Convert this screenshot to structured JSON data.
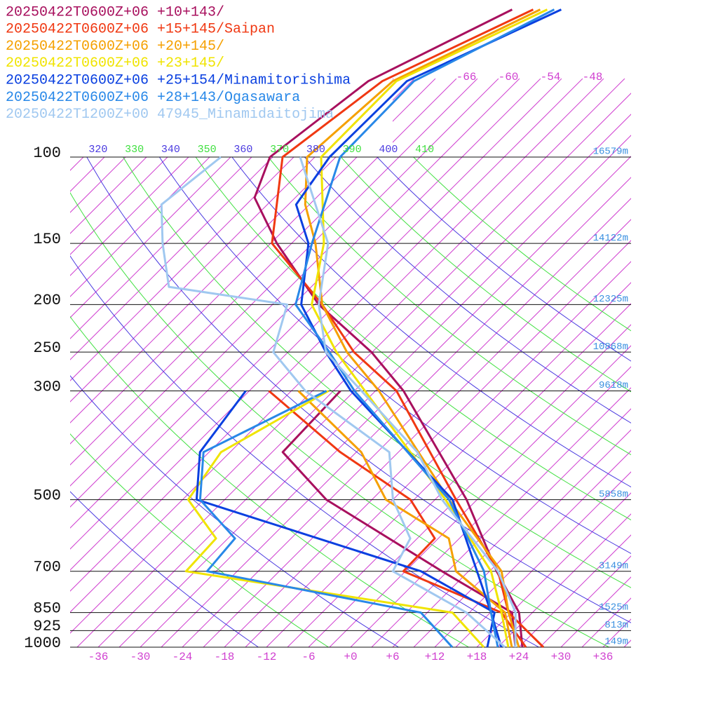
{
  "chart_data": {
    "type": "skewt",
    "xlim": [
      -40,
      40
    ],
    "ylim": [
      1000,
      100
    ],
    "xticks": [
      {
        "value": -36,
        "label": "-36"
      },
      {
        "value": -30,
        "label": "-30"
      },
      {
        "value": -24,
        "label": "-24"
      },
      {
        "value": -18,
        "label": "-18"
      },
      {
        "value": -12,
        "label": "-12"
      },
      {
        "value": -6,
        "label": "-6"
      },
      {
        "value": 0,
        "label": "+0"
      },
      {
        "value": 6,
        "label": "+6"
      },
      {
        "value": 12,
        "label": "+12"
      },
      {
        "value": 18,
        "label": "+18"
      },
      {
        "value": 24,
        "label": "+24"
      },
      {
        "value": 30,
        "label": "+30"
      },
      {
        "value": 36,
        "label": "+36"
      }
    ],
    "yticks": [
      100,
      150,
      200,
      250,
      300,
      500,
      700,
      850,
      925,
      1000
    ],
    "height_labels": [
      "16579m",
      "14122m",
      "12325m",
      "10868m",
      "9618m",
      "5858m",
      "3149m",
      "1525m",
      "813m",
      "149m"
    ],
    "isotherms": [
      -108,
      -105,
      -102,
      -99,
      -96,
      -93,
      -90,
      -87,
      -84,
      -81,
      -78,
      -75,
      -72,
      -69,
      -66,
      -63,
      -60,
      -57,
      -54,
      -51,
      -48,
      -45,
      -42,
      -39,
      -36,
      -33,
      -30,
      -27,
      -24,
      -21,
      -18,
      -15,
      -12,
      -9,
      -6,
      -3,
      0,
      3,
      6,
      9,
      12,
      15,
      18,
      21,
      24,
      27,
      30,
      33,
      36,
      39
    ],
    "isotherm_color": "#d040d0",
    "isotherm_labels": [
      -66,
      -60,
      -54,
      -48
    ],
    "dry_adiabats": [
      260,
      270,
      280,
      290,
      300,
      310,
      320,
      330,
      340,
      350,
      360,
      370,
      380,
      390,
      400,
      410
    ],
    "adiabat_colors": [
      "#4a3ae0",
      "#40e040"
    ],
    "dry_adiabat_labels": [
      320,
      330,
      340,
      350,
      360,
      370,
      380,
      390,
      400,
      410
    ],
    "series": [
      {
        "name": "20250422T0600Z+06 +10+143/",
        "color": "#a8105e",
        "pressure": [
          1000,
          850,
          700,
          500,
          300,
          250,
          200,
          150,
          121,
          100,
          70,
          50
        ],
        "temperature": [
          24.5,
          19.1,
          10,
          -4.5,
          -29,
          -39.1,
          -53.4,
          -68.1,
          -77.8,
          -81.4,
          -78.2,
          -67.9
        ],
        "dewpoint_pressure": [
          1000,
          850,
          700,
          500,
          400,
          300
        ],
        "dewpoint": [
          23.5,
          18.1,
          2.2,
          -24.5,
          -37.5,
          -38
        ]
      },
      {
        "name": "20250422T0600Z+06 +15+145/Saipan",
        "color": "#f03812",
        "pressure": [
          1000,
          850,
          700,
          500,
          300,
          250,
          200,
          150,
          100,
          70,
          50
        ],
        "temperature": [
          27.5,
          17.6,
          10.2,
          -6,
          -30,
          -41.6,
          -52.9,
          -68.8,
          -79.6,
          -76.2,
          -64.9
        ],
        "dewpoint_pressure": [
          1000,
          850,
          700,
          600,
          500,
          400,
          300
        ],
        "dewpoint": [
          25,
          16.6,
          -3.3,
          -3.5,
          -12.5,
          -29.3,
          -48.2
        ]
      },
      {
        "name": "20250422T0600Z+06 +20+145/",
        "color": "#f5a000",
        "pressure": [
          1000,
          850,
          700,
          500,
          300,
          250,
          200,
          150,
          125,
          100,
          70,
          50
        ],
        "temperature": [
          24,
          17.6,
          10.7,
          -7,
          -32.5,
          -42.6,
          -52.9,
          -62.6,
          -69.6,
          -76.1,
          -74.7,
          -63.9
        ],
        "dewpoint_pressure": [
          1000,
          850,
          700,
          600,
          500,
          400,
          300
        ],
        "dewpoint": [
          23,
          17.1,
          4.2,
          -1.5,
          -16,
          -26.3,
          -44
        ]
      },
      {
        "name": "20250422T0600Z+06 +23+145/",
        "color": "#f0e400",
        "pressure": [
          1000,
          850,
          700,
          500,
          300,
          250,
          200,
          150,
          100,
          70,
          50
        ],
        "temperature": [
          22.5,
          16.6,
          9.2,
          -7.5,
          -34.5,
          -44.1,
          -54.4,
          -61.4,
          -74.1,
          -74.2,
          -62.9
        ],
        "dewpoint_pressure": [
          1000,
          850,
          700,
          600,
          500,
          400,
          300
        ],
        "dewpoint": [
          19,
          9.6,
          -34.3,
          -34.7,
          -44.2,
          -46.3,
          -39.7
        ]
      },
      {
        "name": "20250422T0600Z+06 +25+154/Minamitorishima",
        "color": "#0a40e0",
        "pressure": [
          1000,
          850,
          700,
          500,
          300,
          250,
          200,
          150,
          125,
          100,
          70,
          50
        ],
        "temperature": [
          21.5,
          15.1,
          7.2,
          -6.5,
          -36.5,
          -45.6,
          -55.9,
          -63.6,
          -70.9,
          -72.9,
          -72.7,
          -60.9
        ],
        "dewpoint_pressure": [
          1000,
          850,
          700,
          500,
          400,
          300
        ],
        "dewpoint": [
          19.5,
          15.6,
          -0.8,
          -43,
          -49.3,
          -51.5
        ]
      },
      {
        "name": "20250422T0600Z+06 +28+143/Ogasawara",
        "color": "#2888e8",
        "pressure": [
          1000,
          850,
          700,
          500,
          300,
          250,
          200,
          150,
          100,
          70,
          50
        ],
        "temperature": [
          21,
          15.1,
          8.2,
          -7,
          -36,
          -45.1,
          -56.7,
          -63.1,
          -71.4,
          -71.7,
          -61.9
        ],
        "dewpoint_pressure": [
          1000,
          850,
          700,
          600,
          500,
          400,
          300
        ],
        "dewpoint": [
          14.5,
          5.1,
          -31.3,
          -32,
          -42.5,
          -48.8,
          -40
        ]
      },
      {
        "name": "20250422T1200Z+00 47945_Minamidaitojima",
        "color": "#a0c8f0",
        "pressure": [
          1000,
          850,
          700,
          500,
          400,
          300,
          250,
          200,
          150,
          100
        ],
        "temperature": [
          23.5,
          18.6,
          10.2,
          -8,
          -18.3,
          -35,
          -45.6,
          -53.4,
          -60.8,
          -77.1
        ],
        "dewpoint_pressure": [
          1000,
          850,
          700,
          600,
          500,
          400,
          300,
          250,
          200,
          184,
          150,
          125,
          100
        ],
        "dewpoint": [
          22,
          11.6,
          -4.8,
          -7,
          -15,
          -22.3,
          -43,
          -53.1,
          -57.9,
          -77.3,
          -84.4,
          -90.1,
          -88.4
        ]
      }
    ]
  }
}
